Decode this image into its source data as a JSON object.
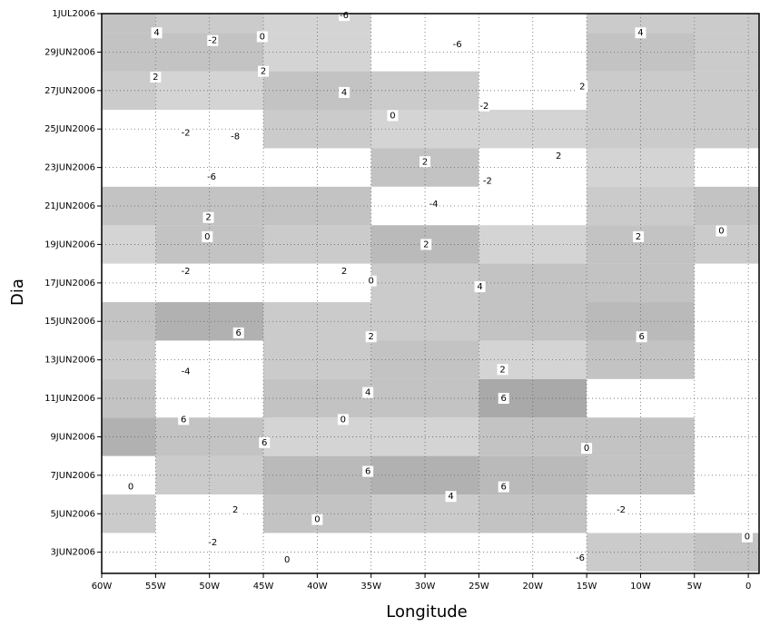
{
  "chart_data": {
    "type": "hovmoller",
    "xlabel": "Longitude",
    "ylabel": "Dia",
    "xlim": [
      -60,
      1
    ],
    "ylim": [
      1.9,
      31
    ],
    "xticks": [
      {
        "value": -60,
        "label": "60W"
      },
      {
        "value": -55,
        "label": "55W"
      },
      {
        "value": -50,
        "label": "50W"
      },
      {
        "value": -45,
        "label": "45W"
      },
      {
        "value": -40,
        "label": "40W"
      },
      {
        "value": -35,
        "label": "35W"
      },
      {
        "value": -30,
        "label": "30W"
      },
      {
        "value": -25,
        "label": "25W"
      },
      {
        "value": -20,
        "label": "20W"
      },
      {
        "value": -15,
        "label": "15W"
      },
      {
        "value": -10,
        "label": "10W"
      },
      {
        "value": -5,
        "label": "5W"
      },
      0
    ],
    "yticks": [
      {
        "value": 3,
        "label": "3JUN2006"
      },
      {
        "value": 5,
        "label": "5JUN2006"
      },
      {
        "value": 7,
        "label": "7JUN2006"
      },
      {
        "value": 9,
        "label": "9JUN2006"
      },
      {
        "value": 11,
        "label": "11JUN2006"
      },
      {
        "value": 13,
        "label": "13JUN2006"
      },
      {
        "value": 15,
        "label": "15JUN2006"
      },
      {
        "value": 17,
        "label": "17JUN2006"
      },
      {
        "value": 19,
        "label": "19JUN2006"
      },
      {
        "value": 21,
        "label": "21JUN2006"
      },
      {
        "value": 23,
        "label": "23JUN2006"
      },
      {
        "value": 25,
        "label": "25JUN2006"
      },
      {
        "value": 27,
        "label": "27JUN2006"
      },
      {
        "value": 29,
        "label": "29JUN2006"
      },
      {
        "value": 31,
        "label": "1JUL2006"
      }
    ],
    "grid": true,
    "positive_color": "#a9a9a9",
    "negative_color": "#ffffff",
    "field": {
      "lon": [
        -60,
        -50,
        -40,
        -30,
        -20,
        -10,
        0
      ],
      "day": [
        31,
        29,
        27,
        25,
        23,
        21,
        19,
        17,
        15,
        13,
        11,
        9,
        7,
        5,
        3
      ],
      "values": [
        [
          3,
          2,
          1,
          -2,
          -4,
          2,
          2
        ],
        [
          3,
          3,
          1,
          -4,
          -5,
          3,
          2
        ],
        [
          2,
          1,
          3,
          2,
          -1,
          2,
          2
        ],
        [
          -2,
          -4,
          2,
          1,
          1,
          2,
          2
        ],
        [
          -4,
          -5,
          -1,
          3,
          -2,
          1,
          -1
        ],
        [
          3,
          3,
          3,
          -1,
          -3,
          2,
          3
        ],
        [
          1,
          3,
          2,
          4,
          1,
          3,
          2
        ],
        [
          -2,
          -2,
          -1,
          2,
          3,
          3,
          -2
        ],
        [
          3,
          5,
          2,
          2,
          3,
          4,
          -1
        ],
        [
          2,
          -3,
          2,
          3,
          1,
          3,
          -3
        ],
        [
          3,
          -1,
          3,
          3,
          6,
          -1,
          -3
        ],
        [
          5,
          3,
          1,
          1,
          3,
          3,
          -1
        ],
        [
          -3,
          2,
          4,
          5,
          4,
          3,
          -3
        ],
        [
          2,
          -1,
          3,
          2,
          3,
          -2,
          -2
        ],
        [
          -2,
          -2,
          -3,
          -1,
          -2,
          2,
          3
        ]
      ]
    },
    "contour_labels": [
      {
        "lon": -54.9,
        "day": 30.0,
        "value": 4
      },
      {
        "lon": -45.1,
        "day": 29.8,
        "value": 0
      },
      {
        "lon": -49.7,
        "day": 29.6,
        "value": -2
      },
      {
        "lon": -37.5,
        "day": 30.9,
        "value": -6
      },
      {
        "lon": -27.0,
        "day": 29.4,
        "value": -6
      },
      {
        "lon": -10.0,
        "day": 30.0,
        "value": 4
      },
      {
        "lon": -55.0,
        "day": 27.7,
        "value": 2
      },
      {
        "lon": -45.0,
        "day": 28.0,
        "value": 2
      },
      {
        "lon": -37.5,
        "day": 26.9,
        "value": 4
      },
      {
        "lon": -33.0,
        "day": 25.7,
        "value": 0
      },
      {
        "lon": -24.5,
        "day": 26.2,
        "value": -2
      },
      {
        "lon": -15.4,
        "day": 27.2,
        "value": 2
      },
      {
        "lon": -47.6,
        "day": 24.6,
        "value": -8
      },
      {
        "lon": -52.2,
        "day": 24.8,
        "value": -2
      },
      {
        "lon": -30.0,
        "day": 23.3,
        "value": 2
      },
      {
        "lon": -24.2,
        "day": 22.3,
        "value": -2
      },
      {
        "lon": -17.6,
        "day": 23.6,
        "value": 2
      },
      {
        "lon": -49.8,
        "day": 22.5,
        "value": -6
      },
      {
        "lon": -29.2,
        "day": 21.1,
        "value": -4
      },
      {
        "lon": -50.1,
        "day": 20.4,
        "value": 2
      },
      {
        "lon": -50.2,
        "day": 19.4,
        "value": 0
      },
      {
        "lon": -29.9,
        "day": 19.0,
        "value": 2
      },
      {
        "lon": -10.2,
        "day": 19.4,
        "value": 2
      },
      {
        "lon": -2.5,
        "day": 19.7,
        "value": 0
      },
      {
        "lon": -52.2,
        "day": 17.6,
        "value": -2
      },
      {
        "lon": -37.5,
        "day": 17.6,
        "value": 2
      },
      {
        "lon": -35.0,
        "day": 17.1,
        "value": 0
      },
      {
        "lon": -24.9,
        "day": 16.8,
        "value": 4
      },
      {
        "lon": -47.3,
        "day": 14.4,
        "value": 6
      },
      {
        "lon": -35.0,
        "day": 14.2,
        "value": 2
      },
      {
        "lon": -9.9,
        "day": 14.2,
        "value": 6
      },
      {
        "lon": -22.8,
        "day": 12.5,
        "value": 2
      },
      {
        "lon": -52.2,
        "day": 12.4,
        "value": -4
      },
      {
        "lon": -35.3,
        "day": 11.3,
        "value": 4
      },
      {
        "lon": -52.4,
        "day": 9.9,
        "value": 6
      },
      {
        "lon": -37.6,
        "day": 9.9,
        "value": 0
      },
      {
        "lon": -22.7,
        "day": 11.0,
        "value": 6
      },
      {
        "lon": -44.9,
        "day": 8.7,
        "value": 6
      },
      {
        "lon": -15.0,
        "day": 8.4,
        "value": 0
      },
      {
        "lon": -35.3,
        "day": 7.2,
        "value": 6
      },
      {
        "lon": -22.7,
        "day": 6.4,
        "value": 6
      },
      {
        "lon": -57.3,
        "day": 6.4,
        "value": 0
      },
      {
        "lon": -47.6,
        "day": 5.2,
        "value": 2
      },
      {
        "lon": -27.6,
        "day": 5.9,
        "value": 4
      },
      {
        "lon": -40.0,
        "day": 4.7,
        "value": 0
      },
      {
        "lon": -49.7,
        "day": 3.5,
        "value": -2
      },
      {
        "lon": -11.8,
        "day": 5.2,
        "value": -2
      },
      {
        "lon": -0.1,
        "day": 3.8,
        "value": 0
      },
      {
        "lon": -42.8,
        "day": 2.6,
        "value": 0
      },
      {
        "lon": -15.6,
        "day": 2.7,
        "value": -6
      }
    ]
  }
}
